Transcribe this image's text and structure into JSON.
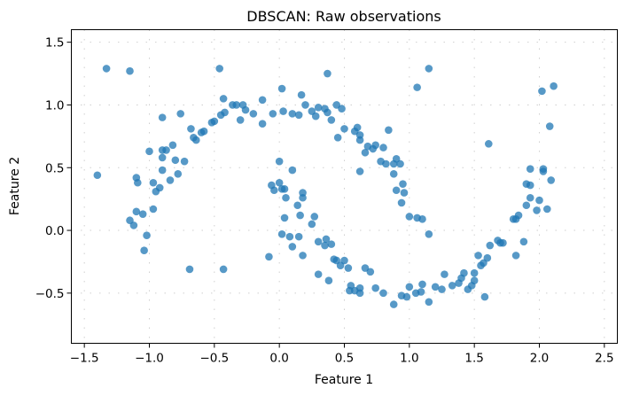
{
  "chart_data": {
    "type": "scatter",
    "title": "DBSCAN: Raw observations",
    "xlabel": "Feature 1",
    "ylabel": "Feature 2",
    "xlim": [
      -1.6,
      2.6
    ],
    "ylim": [
      -0.9,
      1.6
    ],
    "xticks": [
      -1.5,
      -1.0,
      -0.5,
      0.0,
      0.5,
      1.0,
      1.5,
      2.0,
      2.5
    ],
    "yticks": [
      -0.5,
      0.0,
      0.5,
      1.0,
      1.5
    ],
    "xtick_labels": [
      "−1.5",
      "−1.0",
      "−0.5",
      "0.0",
      "0.5",
      "1.0",
      "1.5",
      "2.0",
      "2.5"
    ],
    "ytick_labels": [
      "−0.5",
      "0.0",
      "0.5",
      "1.0",
      "1.5"
    ],
    "grid": true,
    "marker_color": "#1f77b4",
    "marker_alpha": 0.75,
    "points": [
      [
        -1.33,
        1.29
      ],
      [
        -1.15,
        1.27
      ],
      [
        -0.46,
        1.29
      ],
      [
        0.37,
        1.25
      ],
      [
        1.15,
        1.29
      ],
      [
        1.06,
        1.14
      ],
      [
        2.02,
        1.11
      ],
      [
        2.11,
        1.15
      ],
      [
        2.08,
        0.83
      ],
      [
        1.61,
        0.69
      ],
      [
        -1.4,
        0.44
      ],
      [
        -0.69,
        -0.31
      ],
      [
        -0.43,
        -0.31
      ],
      [
        -0.08,
        -0.21
      ],
      [
        -1.1,
        0.42
      ],
      [
        -1.09,
        0.38
      ],
      [
        -1.05,
        0.13
      ],
      [
        -1.12,
        0.04
      ],
      [
        -1.15,
        0.08
      ],
      [
        -1.02,
        -0.04
      ],
      [
        -1.04,
        -0.16
      ],
      [
        -1.1,
        0.15
      ],
      [
        -0.97,
        0.17
      ],
      [
        -1.0,
        0.63
      ],
      [
        -0.97,
        0.38
      ],
      [
        -0.95,
        0.31
      ],
      [
        -0.92,
        0.34
      ],
      [
        -0.9,
        0.48
      ],
      [
        -0.9,
        0.58
      ],
      [
        -0.9,
        0.64
      ],
      [
        -0.84,
        0.4
      ],
      [
        -0.87,
        0.64
      ],
      [
        -0.8,
        0.56
      ],
      [
        -0.78,
        0.45
      ],
      [
        -0.82,
        0.68
      ],
      [
        -0.73,
        0.55
      ],
      [
        -0.76,
        0.93
      ],
      [
        -0.9,
        0.9
      ],
      [
        -0.68,
        0.81
      ],
      [
        -0.66,
        0.74
      ],
      [
        -0.6,
        0.78
      ],
      [
        -0.64,
        0.72
      ],
      [
        -0.58,
        0.79
      ],
      [
        -0.52,
        0.86
      ],
      [
        -0.5,
        0.87
      ],
      [
        -0.45,
        0.92
      ],
      [
        -0.42,
        0.94
      ],
      [
        -0.43,
        1.05
      ],
      [
        -0.36,
        1.0
      ],
      [
        -0.33,
        1.0
      ],
      [
        -0.3,
        0.88
      ],
      [
        -0.28,
        1.0
      ],
      [
        -0.2,
        0.93
      ],
      [
        -0.26,
        0.96
      ],
      [
        -0.13,
        1.04
      ],
      [
        -0.13,
        0.85
      ],
      [
        -0.05,
        0.93
      ],
      [
        0.03,
        0.95
      ],
      [
        0.02,
        1.13
      ],
      [
        0.1,
        0.93
      ],
      [
        0.15,
        0.92
      ],
      [
        0.17,
        1.08
      ],
      [
        0.2,
        1.0
      ],
      [
        0.25,
        0.95
      ],
      [
        0.28,
        0.91
      ],
      [
        0.3,
        0.98
      ],
      [
        0.35,
        0.97
      ],
      [
        0.37,
        0.94
      ],
      [
        0.4,
        0.88
      ],
      [
        0.44,
        1.0
      ],
      [
        0.48,
        0.97
      ],
      [
        0.45,
        0.74
      ],
      [
        0.5,
        0.81
      ],
      [
        0.58,
        0.79
      ],
      [
        0.6,
        0.82
      ],
      [
        0.62,
        0.76
      ],
      [
        0.62,
        0.72
      ],
      [
        0.66,
        0.62
      ],
      [
        0.68,
        0.67
      ],
      [
        0.72,
        0.65
      ],
      [
        0.74,
        0.68
      ],
      [
        0.8,
        0.66
      ],
      [
        0.78,
        0.55
      ],
      [
        0.84,
        0.8
      ],
      [
        0.82,
        0.53
      ],
      [
        0.88,
        0.53
      ],
      [
        0.88,
        0.45
      ],
      [
        0.9,
        0.57
      ],
      [
        0.93,
        0.53
      ],
      [
        0.9,
        0.32
      ],
      [
        0.95,
        0.37
      ],
      [
        0.96,
        0.3
      ],
      [
        0.94,
        0.22
      ],
      [
        1.0,
        0.11
      ],
      [
        1.06,
        0.1
      ],
      [
        1.1,
        0.09
      ],
      [
        1.15,
        -0.03
      ],
      [
        0.62,
        0.47
      ],
      [
        -0.06,
        0.36
      ],
      [
        -0.04,
        0.32
      ],
      [
        0.0,
        0.38
      ],
      [
        0.02,
        0.33
      ],
      [
        0.04,
        0.33
      ],
      [
        0.05,
        0.26
      ],
      [
        0.0,
        0.55
      ],
      [
        0.1,
        0.48
      ],
      [
        0.04,
        0.1
      ],
      [
        0.02,
        -0.03
      ],
      [
        0.08,
        -0.05
      ],
      [
        0.14,
        0.2
      ],
      [
        0.18,
        0.26
      ],
      [
        0.18,
        0.3
      ],
      [
        0.16,
        0.12
      ],
      [
        0.1,
        -0.13
      ],
      [
        0.15,
        -0.05
      ],
      [
        0.18,
        -0.2
      ],
      [
        0.25,
        0.05
      ],
      [
        0.27,
        0.11
      ],
      [
        0.3,
        -0.09
      ],
      [
        0.35,
        -0.12
      ],
      [
        0.36,
        -0.07
      ],
      [
        0.4,
        -0.11
      ],
      [
        0.3,
        -0.35
      ],
      [
        0.38,
        -0.4
      ],
      [
        0.42,
        -0.23
      ],
      [
        0.44,
        -0.24
      ],
      [
        0.47,
        -0.28
      ],
      [
        0.5,
        -0.24
      ],
      [
        0.53,
        -0.3
      ],
      [
        0.54,
        -0.48
      ],
      [
        0.55,
        -0.44
      ],
      [
        0.58,
        -0.48
      ],
      [
        0.62,
        -0.5
      ],
      [
        0.62,
        -0.46
      ],
      [
        0.66,
        -0.3
      ],
      [
        0.7,
        -0.33
      ],
      [
        0.74,
        -0.46
      ],
      [
        0.8,
        -0.5
      ],
      [
        0.88,
        -0.59
      ],
      [
        0.94,
        -0.52
      ],
      [
        0.98,
        -0.53
      ],
      [
        1.0,
        -0.45
      ],
      [
        1.05,
        -0.5
      ],
      [
        1.09,
        -0.49
      ],
      [
        1.1,
        -0.43
      ],
      [
        1.15,
        -0.57
      ],
      [
        1.2,
        -0.45
      ],
      [
        1.25,
        -0.47
      ],
      [
        1.27,
        -0.35
      ],
      [
        1.33,
        -0.44
      ],
      [
        1.38,
        -0.42
      ],
      [
        1.4,
        -0.38
      ],
      [
        1.42,
        -0.34
      ],
      [
        1.45,
        -0.47
      ],
      [
        1.48,
        -0.44
      ],
      [
        1.5,
        -0.4
      ],
      [
        1.5,
        -0.34
      ],
      [
        1.53,
        -0.2
      ],
      [
        1.55,
        -0.28
      ],
      [
        1.57,
        -0.26
      ],
      [
        1.58,
        -0.53
      ],
      [
        1.6,
        -0.22
      ],
      [
        1.62,
        -0.12
      ],
      [
        1.68,
        -0.08
      ],
      [
        1.7,
        -0.1
      ],
      [
        1.72,
        -0.1
      ],
      [
        1.8,
        0.09
      ],
      [
        1.82,
        -0.2
      ],
      [
        1.84,
        0.12
      ],
      [
        1.88,
        -0.09
      ],
      [
        1.9,
        0.2
      ],
      [
        1.9,
        0.37
      ],
      [
        1.93,
        0.36
      ],
      [
        1.93,
        0.49
      ],
      [
        1.93,
        0.26
      ],
      [
        1.98,
        0.16
      ],
      [
        2.0,
        0.24
      ],
      [
        2.03,
        0.49
      ],
      [
        2.03,
        0.47
      ],
      [
        2.06,
        0.17
      ],
      [
        2.09,
        0.4
      ],
      [
        1.82,
        0.09
      ]
    ]
  }
}
